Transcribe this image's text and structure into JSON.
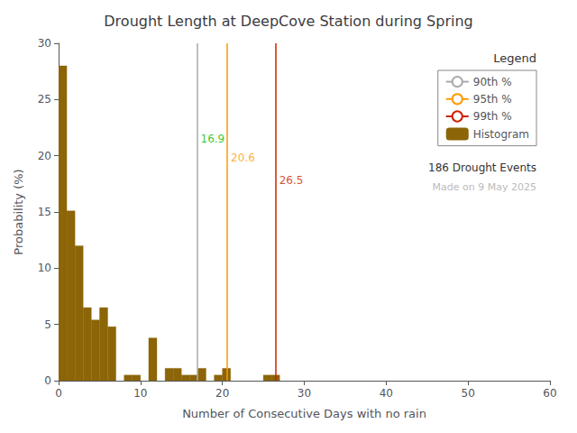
{
  "chart_data": {
    "type": "histogram",
    "title": "Drought Length at DeepCove Station during Spring",
    "xlabel": "Number of Consecutive Days with no rain",
    "ylabel": "Probability (%)",
    "bins": [
      0,
      1,
      2,
      3,
      4,
      5,
      6,
      7,
      8,
      9,
      10,
      11,
      12,
      13,
      14,
      15,
      16,
      17,
      18,
      19,
      20,
      21,
      22,
      23,
      24,
      25,
      26,
      27,
      28,
      29,
      30,
      31,
      32,
      33,
      34,
      35,
      36,
      37,
      38,
      39,
      40,
      41,
      42,
      43,
      44,
      45,
      46,
      47,
      48,
      49,
      50,
      51,
      52,
      53,
      54,
      55,
      56,
      57,
      58,
      59,
      60
    ],
    "values": [
      28.0,
      15.1,
      12.0,
      6.5,
      5.4,
      6.5,
      4.8,
      0.0,
      0.5,
      0.5,
      0.0,
      3.8,
      0.0,
      1.1,
      1.1,
      0.5,
      0.5,
      1.1,
      0.0,
      0.5,
      1.1,
      0.0,
      0.0,
      0.0,
      0.0,
      0.5,
      0.5,
      0.0,
      0.0,
      0.0,
      0.0,
      0.0,
      0.0,
      0.0,
      0.0,
      0.0,
      0.0,
      0.0,
      0.0,
      0.0,
      0.0,
      0.0,
      0.0,
      0.0,
      0.0,
      0.0,
      0.0,
      0.0,
      0.0,
      0.0,
      0.0,
      0.0,
      0.0,
      0.0,
      0.0,
      0.0,
      0.0,
      0.0,
      0.0,
      0.0
    ],
    "name": "Histogram",
    "color": "#8B6508",
    "xlim": [
      0,
      60
    ],
    "ylim": [
      0,
      30
    ],
    "xticks": [
      0,
      10,
      20,
      30,
      40,
      50,
      60
    ],
    "yticks": [
      0,
      5,
      10,
      15,
      20,
      25,
      30
    ],
    "grid": false,
    "legend": "upper right",
    "legend_title": "Legend",
    "lines": [
      {
        "name": "90th %",
        "x": 16.9,
        "color": "#aaaaaa"
      },
      {
        "name": "95th %",
        "x": 20.6,
        "color": "#ff9900"
      },
      {
        "name": "99th %",
        "x": 26.5,
        "color": "#cc2200"
      }
    ],
    "annotations": [
      {
        "text": "16.9",
        "x": 16.9,
        "y": 21.5,
        "color": "#00bb00"
      },
      {
        "text": "20.6",
        "x": 20.6,
        "y": 19.8,
        "color": "#ff9900"
      },
      {
        "text": "26.5",
        "x": 26.5,
        "y": 17.8,
        "color": "#cc2200"
      },
      {
        "text": "186 Drought Events"
      },
      {
        "text": "Made on 9 May 2025",
        "color": "#bbbbbb"
      }
    ]
  }
}
